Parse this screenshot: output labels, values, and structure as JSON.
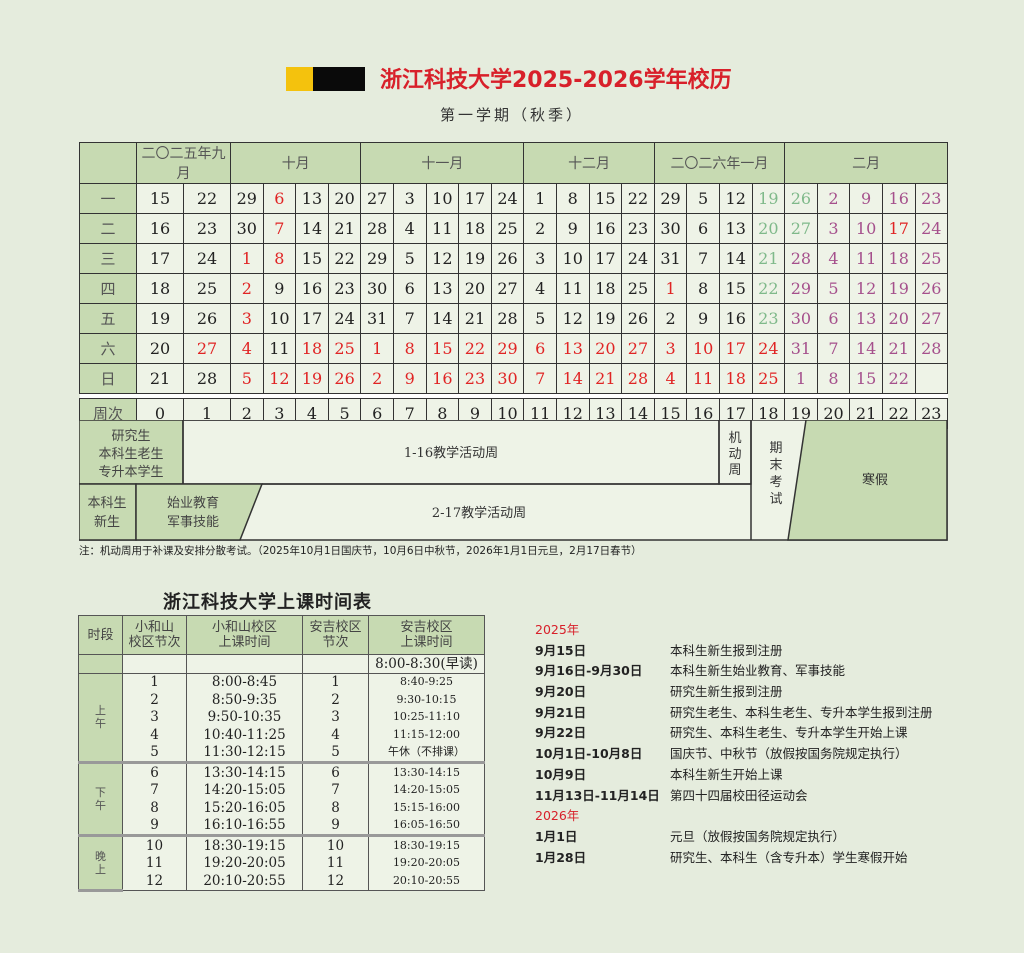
{
  "header": {
    "title": "浙江科技大学2025-2026学年校历",
    "subtitle": "第一学期（秋季）"
  },
  "colors": {
    "red": "#e02424",
    "green": "#7fb98a",
    "purple": "#a5508c",
    "header_green": "#c7dab2"
  },
  "calendar": {
    "months": [
      {
        "label": "二〇二五年九月",
        "span": 2
      },
      {
        "label": "十月",
        "span": 4
      },
      {
        "label": "十一月",
        "span": 5
      },
      {
        "label": "十二月",
        "span": 4
      },
      {
        "label": "二〇二六年一月",
        "span": 4
      },
      {
        "label": "二月",
        "span": 5
      }
    ],
    "tone_legend": {
      "n": "normal",
      "r": "holiday-red",
      "g": "exam-green",
      "p": "winter-break-purple"
    },
    "rows": [
      {
        "day": "一",
        "values": [
          "15",
          "22",
          "29",
          "6",
          "13",
          "20",
          "27",
          "3",
          "10",
          "17",
          "24",
          "1",
          "8",
          "15",
          "22",
          "29",
          "5",
          "12",
          "19",
          "26",
          "2",
          "9",
          "16",
          "23"
        ],
        "tones": "nnnrnnnnnnnnnnnnnnggpppp"
      },
      {
        "day": "二",
        "values": [
          "16",
          "23",
          "30",
          "7",
          "14",
          "21",
          "28",
          "4",
          "11",
          "18",
          "25",
          "2",
          "9",
          "16",
          "23",
          "30",
          "6",
          "13",
          "20",
          "27",
          "3",
          "10",
          "17",
          "24"
        ],
        "tones": "nnnrnnnnnnnnnnnnnnggpprp"
      },
      {
        "day": "三",
        "values": [
          "17",
          "24",
          "1",
          "8",
          "15",
          "22",
          "29",
          "5",
          "12",
          "19",
          "26",
          "3",
          "10",
          "17",
          "24",
          "31",
          "7",
          "14",
          "21",
          "28",
          "4",
          "11",
          "18",
          "25"
        ],
        "tones": "nnrrnnnnnnnnnnnnnngppppp"
      },
      {
        "day": "四",
        "values": [
          "18",
          "25",
          "2",
          "9",
          "16",
          "23",
          "30",
          "6",
          "13",
          "20",
          "27",
          "4",
          "11",
          "18",
          "25",
          "1",
          "8",
          "15",
          "22",
          "29",
          "5",
          "12",
          "19",
          "26"
        ],
        "tones": "nnrnnnnnnnnnnnnrnngppppp"
      },
      {
        "day": "五",
        "values": [
          "19",
          "26",
          "3",
          "10",
          "17",
          "24",
          "31",
          "7",
          "14",
          "21",
          "28",
          "5",
          "12",
          "19",
          "26",
          "2",
          "9",
          "16",
          "23",
          "30",
          "6",
          "13",
          "20",
          "27"
        ],
        "tones": "nnrnnnnnnnnnnnnnnngppppp"
      },
      {
        "day": "六",
        "values": [
          "20",
          "27",
          "4",
          "11",
          "18",
          "25",
          "1",
          "8",
          "15",
          "22",
          "29",
          "6",
          "13",
          "20",
          "27",
          "3",
          "10",
          "17",
          "24",
          "31",
          "7",
          "14",
          "21",
          "28"
        ],
        "tones": "nrrnrrrrrrrrrrrrrrrppppp"
      },
      {
        "day": "日",
        "values": [
          "21",
          "28",
          "5",
          "12",
          "19",
          "26",
          "2",
          "9",
          "16",
          "23",
          "30",
          "7",
          "14",
          "21",
          "28",
          "4",
          "11",
          "18",
          "25",
          "1",
          "8",
          "15",
          "22",
          ""
        ],
        "tones": "nnrrrrrrrrrrrrrrrrrppppn"
      }
    ],
    "week_label": "周次",
    "weeks": [
      "0",
      "1",
      "2",
      "3",
      "4",
      "5",
      "6",
      "7",
      "8",
      "9",
      "10",
      "11",
      "12",
      "13",
      "14",
      "15",
      "16",
      "17",
      "18",
      "19",
      "20",
      "21",
      "22",
      "23"
    ]
  },
  "phases": {
    "group_a_label": [
      "研究生",
      "本科生老生",
      "专升本学生"
    ],
    "group_b_label": [
      "本科生",
      "新生"
    ],
    "orientation": [
      "始业教育",
      "军事技能"
    ],
    "teaching_a": "1-16教学活动周",
    "teaching_b": "2-17教学活动周",
    "flex_week": [
      "机",
      "动",
      "周"
    ],
    "final_exam": [
      "期",
      "末",
      "考",
      "试"
    ],
    "winter_break": "寒假"
  },
  "note": "注：机动周用于补课及安排分散考试。（2025年10月1日国庆节，10月6日中秋节，2026年1月1日元旦，2月17日春节）",
  "schedule": {
    "title": "浙江科技大学上课时间表",
    "headers": {
      "segment": "时段",
      "xhs_period": [
        "小和山",
        "校区节次"
      ],
      "xhs_time": [
        "小和山校区",
        "上课时间"
      ],
      "aj_period": [
        "安吉校区",
        "节次"
      ],
      "aj_time": [
        "安吉校区",
        "上课时间"
      ]
    },
    "early_reading": "8:00-8:30(早读)",
    "segments": [
      {
        "label": [
          "上",
          "午"
        ],
        "rows": [
          [
            "1",
            "8:00-8:45",
            "1",
            "8:40-9:25"
          ],
          [
            "2",
            "8:50-9:35",
            "2",
            "9:30-10:15"
          ],
          [
            "3",
            "9:50-10:35",
            "3",
            "10:25-11:10"
          ],
          [
            "4",
            "10:40-11:25",
            "4",
            "11:15-12:00"
          ],
          [
            "5",
            "11:30-12:15",
            "5",
            "午休（不排课）"
          ]
        ]
      },
      {
        "label": [
          "下",
          "午"
        ],
        "rows": [
          [
            "6",
            "13:30-14:15",
            "6",
            "13:30-14:15"
          ],
          [
            "7",
            "14:20-15:05",
            "7",
            "14:20-15:05"
          ],
          [
            "8",
            "15:20-16:05",
            "8",
            "15:15-16:00"
          ],
          [
            "9",
            "16:10-16:55",
            "9",
            "16:05-16:50"
          ]
        ]
      },
      {
        "label": [
          "晚",
          "上"
        ],
        "rows": [
          [
            "10",
            "18:30-19:15",
            "10",
            "18:30-19:15"
          ],
          [
            "11",
            "19:20-20:05",
            "11",
            "19:20-20:05"
          ],
          [
            "12",
            "20:10-20:55",
            "12",
            "20:10-20:55"
          ]
        ]
      }
    ]
  },
  "events": [
    {
      "year": "2025年"
    },
    {
      "date": "9月15日",
      "text": "本科生新生报到注册"
    },
    {
      "date": "9月16日-9月30日",
      "text": "本科生新生始业教育、军事技能"
    },
    {
      "date": "9月20日",
      "text": "研究生新生报到注册"
    },
    {
      "date": "9月21日",
      "text": "研究生老生、本科生老生、专升本学生报到注册"
    },
    {
      "date": "9月22日",
      "text": "研究生、本科生老生、专升本学生开始上课"
    },
    {
      "date": "10月1日-10月8日",
      "text": "国庆节、中秋节（放假按国务院规定执行）"
    },
    {
      "date": "10月9日",
      "text": "本科生新生开始上课"
    },
    {
      "date": "11月13日-11月14日",
      "text": "第四十四届校田径运动会"
    },
    {
      "year": "2026年"
    },
    {
      "date": "1月1日",
      "text": "元旦（放假按国务院规定执行）"
    },
    {
      "date": "1月28日",
      "text": "研究生、本科生（含专升本）学生寒假开始"
    }
  ]
}
